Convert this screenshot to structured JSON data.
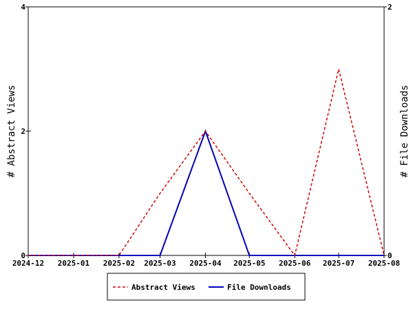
{
  "chart_data": {
    "type": "line",
    "x": [
      "2024-12",
      "2025-01",
      "2025-02",
      "2025-03",
      "2025-04",
      "2025-05",
      "2025-06",
      "2025-07",
      "2025-08"
    ],
    "series": [
      {
        "name": "Abstract Views",
        "axis": "left",
        "color": "#cc0000",
        "dash": "dashed",
        "values": [
          0,
          0,
          0,
          1,
          2,
          1,
          0,
          3,
          0
        ]
      },
      {
        "name": "File Downloads",
        "axis": "right",
        "color": "#0000bb",
        "dash": "solid",
        "values": [
          0,
          0,
          0,
          0,
          1,
          0,
          0,
          0,
          0
        ]
      }
    ],
    "ylabel": "# Abstract Views",
    "y2label": "# File Downloads",
    "ylim": [
      0,
      4
    ],
    "y2lim": [
      0,
      2
    ],
    "yticks": [
      "0",
      "2",
      "4"
    ],
    "y2ticks": [
      "0",
      "2"
    ],
    "legend_position": "bottom-center",
    "grid": false
  }
}
